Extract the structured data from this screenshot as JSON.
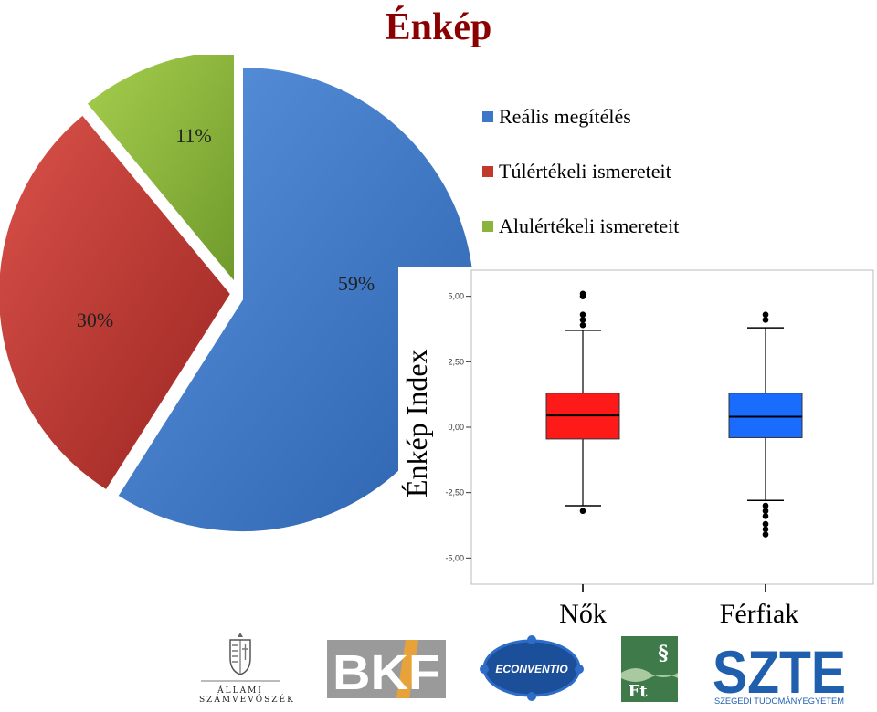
{
  "title": "Énkép",
  "chart_data": [
    {
      "type": "pie",
      "slices": [
        {
          "label": "Reális megítélés",
          "value": 59,
          "display": "59%",
          "color": "#3b78c9"
        },
        {
          "label": "Túlértékeli ismereteit",
          "value": 30,
          "display": "30%",
          "color": "#c0392b"
        },
        {
          "label": "Alulértékeli ismereteit",
          "value": 11,
          "display": "11%",
          "color": "#8cb43c"
        }
      ],
      "legend_position": "right"
    },
    {
      "type": "box",
      "ylabel": "Énkép Index",
      "ylim": [
        -6.0,
        6.0
      ],
      "yticks": [
        {
          "value": 5.0,
          "label": "5,00"
        },
        {
          "value": 2.5,
          "label": "2,50"
        },
        {
          "value": 0.0,
          "label": "0,00"
        },
        {
          "value": -2.5,
          "label": "-2,50"
        },
        {
          "value": -5.0,
          "label": "-5,00"
        }
      ],
      "categories": [
        "Nők",
        "Férfiak"
      ],
      "boxes": [
        {
          "name": "Nők",
          "color": "#ff1a1a",
          "whisker_low": -3.0,
          "q1": -0.45,
          "median": 0.45,
          "q3": 1.3,
          "whisker_high": 3.7,
          "outliers": [
            5.1,
            5.0,
            4.3,
            4.1,
            3.9,
            -3.2
          ]
        },
        {
          "name": "Férfiak",
          "color": "#1a6cff",
          "whisker_low": -2.8,
          "q1": -0.4,
          "median": 0.4,
          "q3": 1.3,
          "whisker_high": 3.8,
          "outliers": [
            4.3,
            4.1,
            -3.0,
            -3.2,
            -3.4,
            -3.7,
            -3.9,
            -4.1
          ]
        }
      ]
    }
  ],
  "logos": {
    "asz_line1": "ÁLLAMI",
    "asz_line2": "SZÁMVEVŐSZÉK",
    "bkf": "BKF",
    "econventio": "ECONVENTIO",
    "ft_symbol": "§",
    "ft": "Ft",
    "szte": "SZTE",
    "szte_sub": "SZEGEDI TUDOMÁNYEGYETEM"
  }
}
